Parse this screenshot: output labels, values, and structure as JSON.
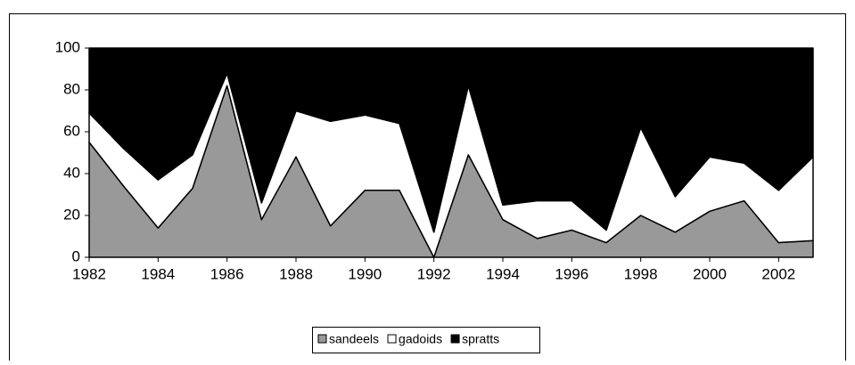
{
  "chart_data": {
    "type": "stacked-area",
    "x": [
      1982,
      1983,
      1984,
      1985,
      1986,
      1987,
      1988,
      1989,
      1990,
      1991,
      1992,
      1993,
      1994,
      1995,
      1996,
      1997,
      1998,
      1999,
      2000,
      2001,
      2002,
      2003
    ],
    "series": [
      {
        "name": "sandeels",
        "color": "#999999",
        "values": [
          55,
          34,
          14,
          33,
          82,
          18,
          48,
          15,
          32,
          32,
          0,
          49,
          18,
          9,
          13,
          7,
          20,
          12,
          22,
          27,
          7,
          8
        ]
      },
      {
        "name": "gadoids",
        "color": "#ffffff",
        "values": [
          14,
          18,
          23,
          16,
          6,
          8,
          22,
          50,
          36,
          32,
          12,
          33,
          7,
          18,
          14,
          6,
          42,
          17,
          26,
          18,
          25,
          40
        ]
      },
      {
        "name": "spratts",
        "color": "#000000",
        "values": [
          31,
          48,
          63,
          51,
          12,
          74,
          30,
          35,
          32,
          36,
          88,
          18,
          75,
          73,
          73,
          87,
          38,
          71,
          52,
          55,
          68,
          52
        ]
      }
    ],
    "xlim": [
      1982,
      2003
    ],
    "xticks": [
      1982,
      1984,
      1986,
      1988,
      1990,
      1992,
      1994,
      1996,
      1998,
      2000,
      2002
    ],
    "ylim": [
      0,
      100
    ],
    "yticks": [
      0,
      20,
      40,
      60,
      80,
      100
    ],
    "legend": "bottom"
  }
}
